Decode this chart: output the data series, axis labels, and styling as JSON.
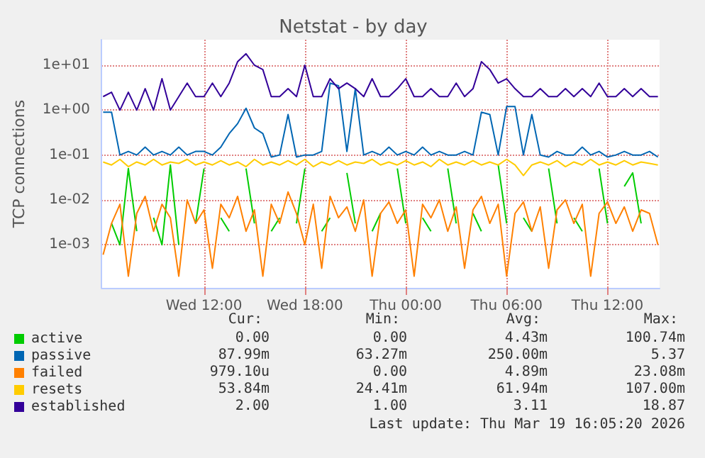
{
  "chart_data": {
    "type": "line",
    "title": "Netstat - by day",
    "ylabel": "TCP connections",
    "log": "y",
    "grid": true,
    "legend": "bottom left",
    "marker": "none",
    "line_style": "solid",
    "x": [
      "2026-03-18T06:00",
      "2026-03-18T06:30",
      "2026-03-18T07:00",
      "2026-03-18T07:30",
      "2026-03-18T08:00",
      "2026-03-18T08:30",
      "2026-03-18T09:00",
      "2026-03-18T09:30",
      "2026-03-18T10:00",
      "2026-03-18T10:30",
      "2026-03-18T11:00",
      "2026-03-18T11:30",
      "2026-03-18T12:00",
      "2026-03-18T12:30",
      "2026-03-18T13:00",
      "2026-03-18T13:30",
      "2026-03-18T14:00",
      "2026-03-18T14:30",
      "2026-03-18T15:00",
      "2026-03-18T15:30",
      "2026-03-18T16:00",
      "2026-03-18T16:30",
      "2026-03-18T17:00",
      "2026-03-18T17:30",
      "2026-03-18T18:00",
      "2026-03-18T18:30",
      "2026-03-18T19:00",
      "2026-03-18T19:30",
      "2026-03-18T20:00",
      "2026-03-18T20:30",
      "2026-03-18T21:00",
      "2026-03-18T21:30",
      "2026-03-18T22:00",
      "2026-03-18T22:30",
      "2026-03-18T23:00",
      "2026-03-18T23:30",
      "2026-03-19T00:00",
      "2026-03-19T00:30",
      "2026-03-19T01:00",
      "2026-03-19T01:30",
      "2026-03-19T02:00",
      "2026-03-19T02:30",
      "2026-03-19T03:00",
      "2026-03-19T03:30",
      "2026-03-19T04:00",
      "2026-03-19T04:30",
      "2026-03-19T05:00",
      "2026-03-19T05:30",
      "2026-03-19T06:00",
      "2026-03-19T06:30",
      "2026-03-19T07:00",
      "2026-03-19T07:30",
      "2026-03-19T08:00",
      "2026-03-19T08:30",
      "2026-03-19T09:00",
      "2026-03-19T09:30",
      "2026-03-19T10:00",
      "2026-03-19T10:30",
      "2026-03-19T11:00",
      "2026-03-19T11:30",
      "2026-03-19T12:00",
      "2026-03-19T12:30",
      "2026-03-19T13:00",
      "2026-03-19T13:30",
      "2026-03-19T14:00",
      "2026-03-19T14:30",
      "2026-03-19T15:00"
    ],
    "xlim": [
      "2026-03-18T05:54",
      "2026-03-19T15:06"
    ],
    "xticks": [
      {
        "value": "2026-03-18T12:00",
        "label": "Wed 12:00"
      },
      {
        "value": "2026-03-18T18:00",
        "label": "Wed 18:00"
      },
      {
        "value": "2026-03-19T00:00",
        "label": "Thu 00:00"
      },
      {
        "value": "2026-03-19T06:00",
        "label": "Thu 06:00"
      },
      {
        "value": "2026-03-19T12:00",
        "label": "Thu 12:00"
      }
    ],
    "ylim": [
      0.00011,
      37
    ],
    "yticks": [
      {
        "value": 0.001,
        "label": "1e-03"
      },
      {
        "value": 0.01,
        "label": "1e-02"
      },
      {
        "value": 0.1,
        "label": "1e-01"
      },
      {
        "value": 1,
        "label": "1e+00"
      },
      {
        "value": 10,
        "label": "1e+01"
      }
    ],
    "series": [
      {
        "name": "active",
        "color": "#00cc00",
        "values": [
          null,
          0.003,
          0.001,
          0.05,
          0.002,
          null,
          0.004,
          0.001,
          0.06,
          0.001,
          null,
          0.003,
          0.05,
          null,
          0.004,
          0.002,
          null,
          0.05,
          0.003,
          null,
          0.002,
          0.004,
          null,
          0.003,
          0.05,
          null,
          0.002,
          0.004,
          null,
          0.04,
          0.003,
          null,
          0.002,
          0.005,
          null,
          0.05,
          0.003,
          null,
          0.004,
          0.002,
          null,
          0.05,
          0.003,
          null,
          0.005,
          0.002,
          null,
          0.06,
          0.003,
          null,
          0.004,
          0.002,
          null,
          0.05,
          0.003,
          null,
          0.004,
          0.002,
          null,
          0.05,
          0.003,
          null,
          0.02,
          0.04,
          0.003,
          null,
          null
        ]
      },
      {
        "name": "passive",
        "color": "#0066b3",
        "values": [
          0.9,
          0.9,
          0.1,
          0.12,
          0.1,
          0.15,
          0.1,
          0.12,
          0.1,
          0.15,
          0.1,
          0.12,
          0.12,
          0.1,
          0.15,
          0.3,
          0.5,
          1.1,
          0.4,
          0.3,
          0.09,
          0.1,
          0.8,
          0.09,
          0.1,
          0.1,
          0.12,
          4,
          3.5,
          0.12,
          3,
          0.1,
          0.12,
          0.1,
          0.15,
          0.1,
          0.12,
          0.1,
          0.15,
          0.1,
          0.12,
          0.1,
          0.1,
          0.12,
          0.1,
          0.9,
          0.8,
          0.1,
          1.2,
          1.2,
          0.1,
          0.8,
          0.1,
          0.09,
          0.12,
          0.1,
          0.1,
          0.15,
          0.1,
          0.12,
          0.09,
          0.1,
          0.12,
          0.1,
          0.1,
          0.12,
          0.09
        ]
      },
      {
        "name": "failed",
        "color": "#ff8000",
        "values": [
          0.0006,
          0.003,
          0.008,
          0.0002,
          0.005,
          0.012,
          0.002,
          0.008,
          0.004,
          0.0002,
          0.01,
          0.003,
          0.006,
          0.0003,
          0.008,
          0.004,
          0.012,
          0.002,
          0.006,
          0.0002,
          0.008,
          0.003,
          0.015,
          0.005,
          0.001,
          0.008,
          0.0003,
          0.012,
          0.004,
          0.007,
          0.002,
          0.01,
          0.0002,
          0.005,
          0.009,
          0.003,
          0.006,
          0.0002,
          0.008,
          0.004,
          0.01,
          0.002,
          0.007,
          0.0003,
          0.006,
          0.012,
          0.003,
          0.008,
          0.0002,
          0.005,
          0.009,
          0.002,
          0.007,
          0.0003,
          0.006,
          0.01,
          0.003,
          0.008,
          0.0002,
          0.005,
          0.009,
          0.003,
          0.007,
          0.002,
          0.006,
          0.005,
          0.001
        ]
      },
      {
        "name": "resets",
        "color": "#ffcc00",
        "values": [
          0.07,
          0.06,
          0.08,
          0.055,
          0.07,
          0.06,
          0.08,
          0.06,
          0.07,
          0.065,
          0.08,
          0.06,
          0.07,
          0.06,
          0.075,
          0.06,
          0.07,
          0.055,
          0.08,
          0.06,
          0.07,
          0.06,
          0.075,
          0.06,
          0.08,
          0.055,
          0.07,
          0.06,
          0.075,
          0.06,
          0.07,
          0.065,
          0.08,
          0.06,
          0.07,
          0.06,
          0.075,
          0.06,
          0.07,
          0.055,
          0.08,
          0.06,
          0.07,
          0.06,
          0.075,
          0.06,
          0.07,
          0.06,
          0.08,
          0.06,
          0.035,
          0.06,
          0.07,
          0.06,
          0.075,
          0.055,
          0.07,
          0.06,
          0.08,
          0.06,
          0.07,
          0.06,
          0.075,
          0.06,
          0.07,
          0.065,
          0.06
        ]
      },
      {
        "name": "established",
        "color": "#330099",
        "values": [
          2,
          2.5,
          1,
          2.5,
          1,
          3,
          1,
          5,
          1,
          2,
          4,
          2,
          2,
          4,
          2,
          4,
          12,
          18,
          10,
          8,
          2,
          2,
          3,
          2,
          10,
          2,
          2,
          5,
          3,
          4,
          3,
          2,
          5,
          2,
          2,
          3,
          5,
          2,
          2,
          3,
          2,
          2,
          4,
          2,
          3,
          12,
          8,
          4,
          5,
          3,
          2,
          2,
          3,
          2,
          2,
          3,
          2,
          3,
          2,
          4,
          2,
          2,
          3,
          2,
          3,
          2,
          2
        ]
      }
    ],
    "annotations": [
      "Cur:",
      "Min:",
      "Avg:",
      "Max:",
      "0.00",
      "0.00",
      "4.43m",
      "100.74m",
      "87.99m",
      "63.27m",
      "250.00m",
      "5.37",
      "979.10u",
      "0.00",
      "4.89m",
      "23.08m",
      "53.84m",
      "24.41m",
      "61.94m",
      "107.00m",
      "2.00",
      "1.00",
      "3.11",
      "18.87",
      "Last update: Thu Mar 19 16:05:20 2026"
    ]
  }
}
